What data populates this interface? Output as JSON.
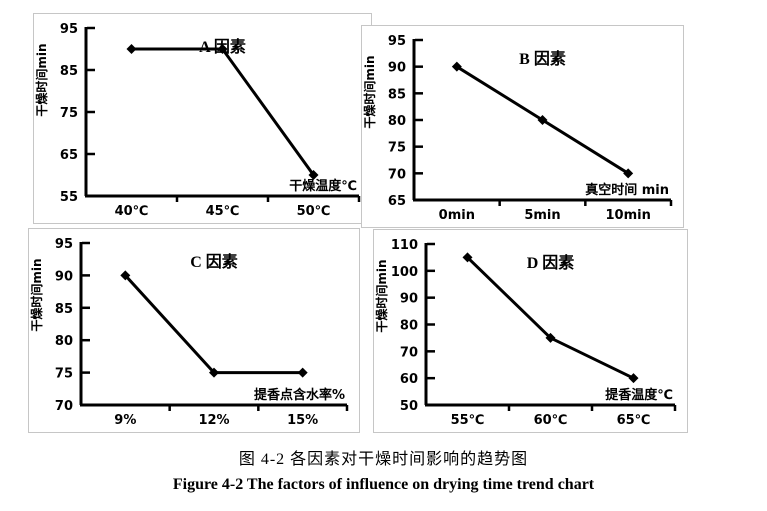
{
  "figure": {
    "caption_zh": "图 4-2 各因素对干燥时间影响的趋势图",
    "caption_en": "Figure 4-2 The factors of influence on drying time trend chart"
  },
  "colors": {
    "line": "#000000",
    "marker": "#000000",
    "axis": "#000000",
    "panel_border": "#c6c6c6",
    "background": "#ffffff",
    "text": "#000000"
  },
  "chart_data": [
    {
      "id": "A",
      "type": "line",
      "title": "A 因素",
      "ylabel": "干燥时间min",
      "xlabel": "干燥温度℃",
      "categories": [
        "40℃",
        "45℃",
        "50℃"
      ],
      "values": [
        90,
        90,
        60
      ],
      "ylim": [
        55,
        95
      ],
      "yticks": [
        55,
        65,
        75,
        85,
        95
      ],
      "grid": false,
      "marker": "diamond",
      "legend": null
    },
    {
      "id": "B",
      "type": "line",
      "title": "B 因素",
      "ylabel": "干燥时间min",
      "xlabel": "真空时间 min",
      "categories": [
        "0min",
        "5min",
        "10min"
      ],
      "values": [
        90,
        80,
        70
      ],
      "ylim": [
        65,
        95
      ],
      "yticks": [
        65,
        70,
        75,
        80,
        85,
        90,
        95
      ],
      "grid": false,
      "marker": "diamond",
      "legend": null
    },
    {
      "id": "C",
      "type": "line",
      "title": "C 因素",
      "ylabel": "干燥时间min",
      "xlabel": "提香点含水率%",
      "categories": [
        "9%",
        "12%",
        "15%"
      ],
      "values": [
        90,
        75,
        75
      ],
      "ylim": [
        70,
        95
      ],
      "yticks": [
        70,
        75,
        80,
        85,
        90,
        95
      ],
      "grid": false,
      "marker": "diamond",
      "legend": null
    },
    {
      "id": "D",
      "type": "line",
      "title": "D 因素",
      "ylabel": "干燥时间min",
      "xlabel": "提香温度℃",
      "categories": [
        "55℃",
        "60℃",
        "65℃"
      ],
      "values": [
        105,
        75,
        60
      ],
      "ylim": [
        50,
        110
      ],
      "yticks": [
        50,
        60,
        70,
        80,
        90,
        100,
        110
      ],
      "grid": false,
      "marker": "diamond",
      "legend": null
    }
  ]
}
